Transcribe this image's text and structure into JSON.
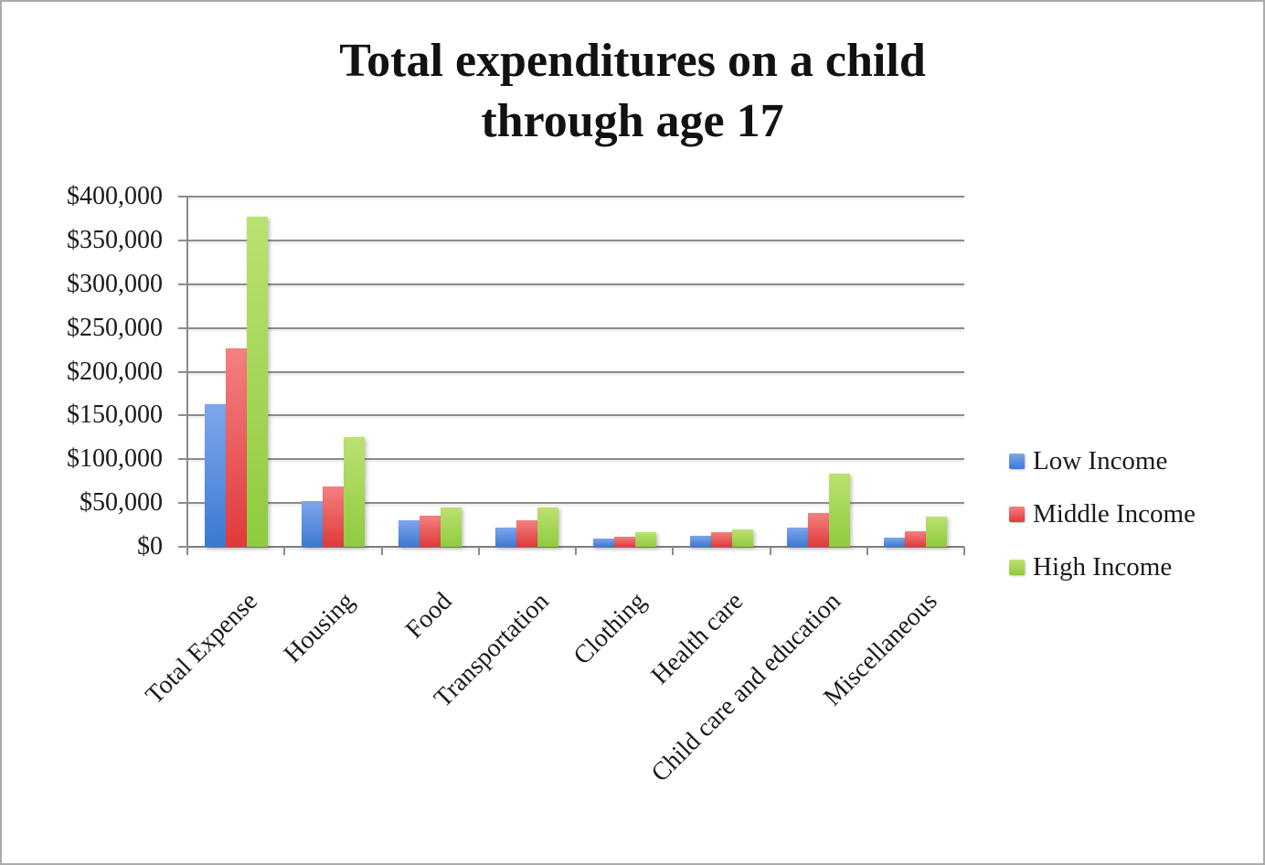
{
  "chart_data": {
    "type": "bar",
    "title": "Total expenditures on a child through age 17",
    "title_lines": [
      "Total expenditures on a child",
      "through age 17"
    ],
    "categories": [
      "Total Expense",
      "Housing",
      "Food",
      "Transportation",
      "Clothing",
      "Health care",
      "Child care and education",
      "Miscellaneous"
    ],
    "series": [
      {
        "name": "Low Income",
        "color_top": "#7FA6EC",
        "color_bottom": "#3B79D2",
        "values": [
          163000,
          52000,
          30000,
          22000,
          9000,
          13000,
          22000,
          10000
        ]
      },
      {
        "name": "Middle Income",
        "color_top": "#F48080",
        "color_bottom": "#E03A3A",
        "values": [
          227000,
          69000,
          36000,
          30000,
          12000,
          17000,
          39000,
          18000
        ]
      },
      {
        "name": "High Income",
        "color_top": "#BBE170",
        "color_bottom": "#8FCB3E",
        "values": [
          377000,
          125000,
          45000,
          45000,
          17000,
          20000,
          84000,
          34000
        ]
      }
    ],
    "y_axis": {
      "min": 0,
      "max": 400000,
      "step": 50000,
      "tick_labels_top_to_bottom": [
        "$400,000",
        "$350,000",
        "$300,000",
        "$250,000",
        "$200,000",
        "$150,000",
        "$100,000",
        "$50,000",
        "$0"
      ]
    },
    "grid": true,
    "legend_position": "right",
    "axis_color": "#8B8B8B",
    "text_color": "#1A1A1A",
    "background_color": "#FFFFFF",
    "frame_border_color": "#ABABAB"
  }
}
